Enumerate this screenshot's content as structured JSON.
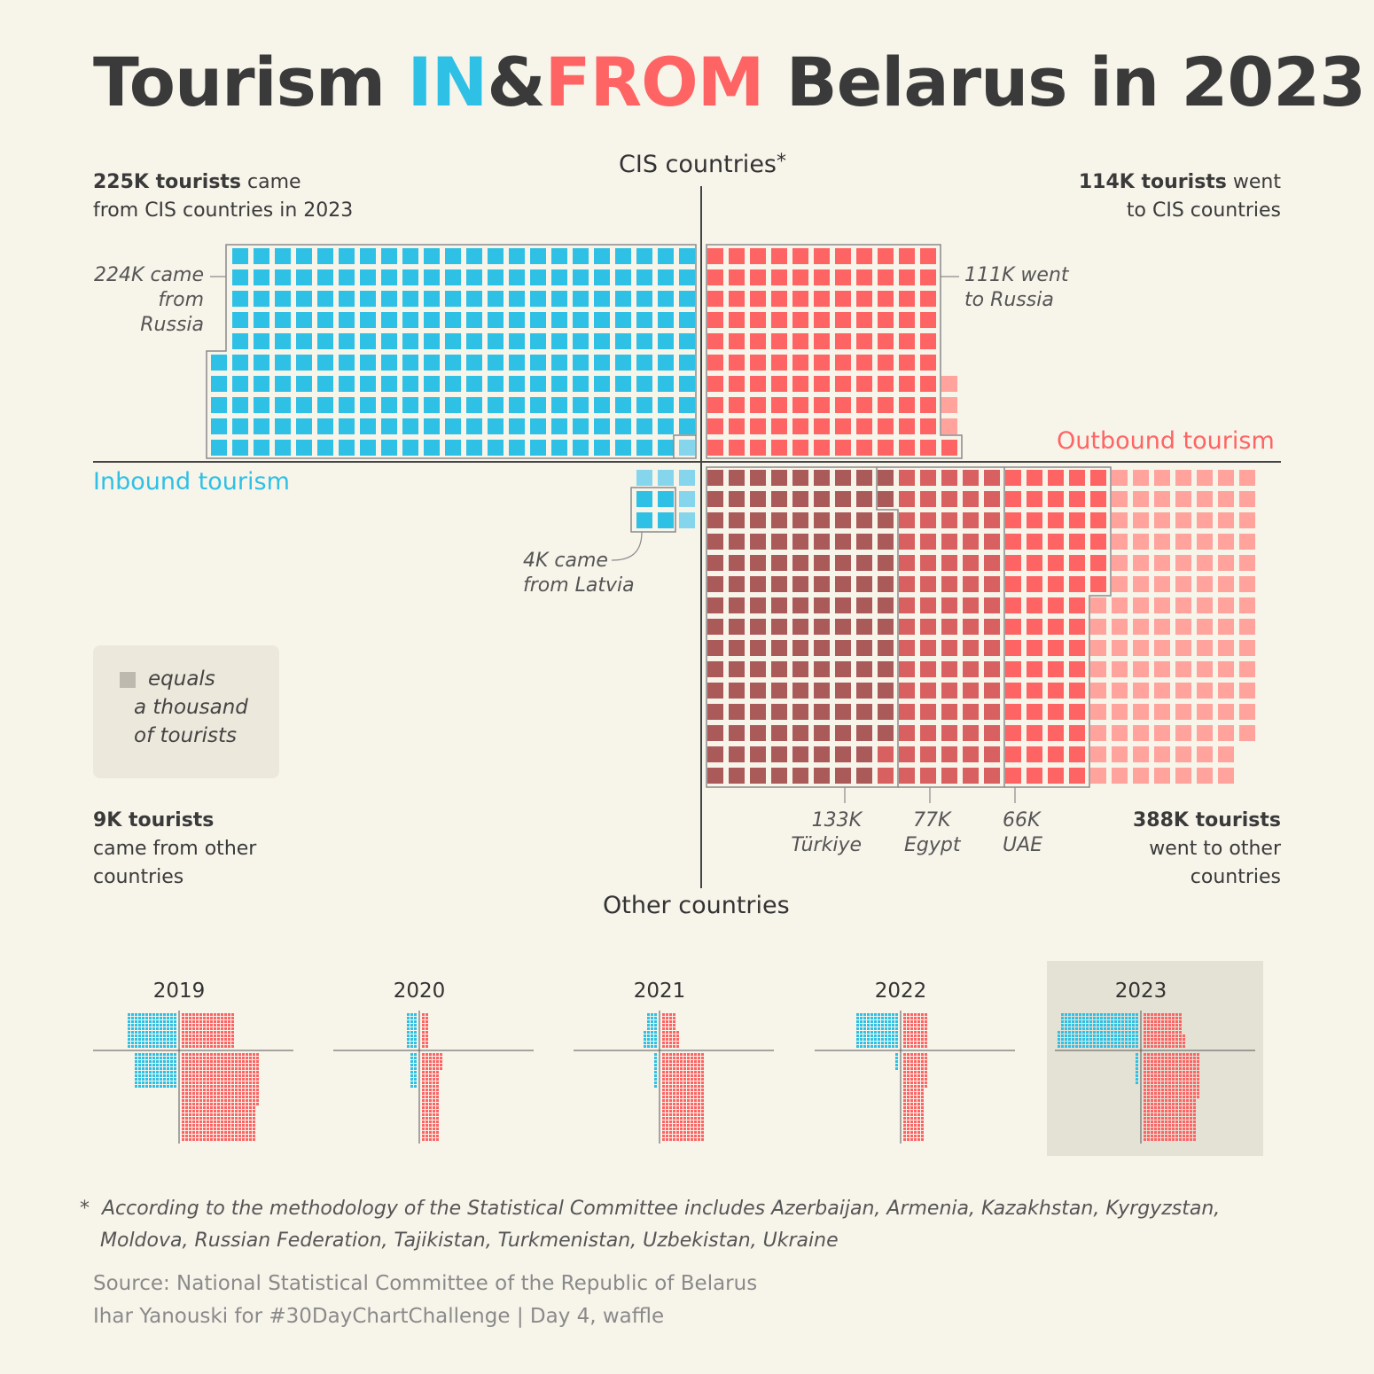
{
  "title": {
    "part1": "Tourism ",
    "in": "IN",
    "amp": "&",
    "from": "FROM",
    "part2": " Belarus in 2023"
  },
  "labels": {
    "cis_axis": "CIS countries",
    "cis_star": "*",
    "other_axis": "Other countries",
    "inbound": "Inbound tourism",
    "outbound": "Outbound tourism",
    "inbound_cis_bold": "225K tourists",
    "inbound_cis_rest1": " came",
    "inbound_cis_rest2": "from CIS countries in 2023",
    "outbound_cis_bold": "114K tourists",
    "outbound_cis_rest1": " went",
    "outbound_cis_rest2": "to CIS countries",
    "russia_in_1": "224K came",
    "russia_in_2": "from Russia",
    "russia_out_1": "111K went",
    "russia_out_2": "to Russia",
    "latvia_1": "4K came",
    "latvia_2": "from Latvia",
    "inbound_other_bold": "9K tourists",
    "inbound_other_rest1": "came from other",
    "inbound_other_rest2": "countries",
    "outbound_other_bold": "388K tourists",
    "outbound_other_rest1": "went to other",
    "outbound_other_rest2": "countries",
    "turkiye_val": "133K",
    "turkiye_name": "Türkiye",
    "egypt_val": "77K",
    "egypt_name": "Egypt",
    "uae_val": "66K",
    "uae_name": "UAE"
  },
  "legend": {
    "line1": "equals",
    "line2": "a thousand",
    "line3": "of tourists"
  },
  "footnote": {
    "star": "*",
    "line1": "According to the methodology of the Statistical Committee includes Azerbaijan, Armenia, Kazakhstan, Kyrgyzstan,",
    "line2": "Moldova, Russian Federation, Tajikistan, Turkmenistan, Uzbekistan, Ukraine"
  },
  "source": {
    "line1": "Source: National Statistical Committee of the Republic of Belarus",
    "line2": "Ihar Yanouski for #30DayChartChallenge | Day 4, waffle"
  },
  "colors": {
    "inbound": "#2fc0e5",
    "inbound_light": "#85d6ec",
    "outbound": "#ff6464",
    "outbound_light": "#ffa39c",
    "turkiye": "#ab5a5a",
    "egypt": "#d96060",
    "background": "#f7f4ea",
    "legend_square": "#bdb9af",
    "highlight_panel": "#e4e1d5"
  },
  "chart_data": {
    "type": "waffle",
    "unit": "1 square = 1000 tourists",
    "year": "2023",
    "inbound": {
      "cis_total": 225,
      "russia": 224,
      "other_total": 9,
      "latvia": 4
    },
    "outbound": {
      "cis_total": 114,
      "russia": 111,
      "other_total": 388,
      "turkiye": 133,
      "egypt": 77,
      "uae": 66
    },
    "small_multiples": [
      {
        "year": "2019",
        "inbound_cis": 140,
        "outbound_cis": 150,
        "inbound_other": 120,
        "outbound_other": 540
      },
      {
        "year": "2020",
        "inbound_cis": 30,
        "outbound_cis": 20,
        "inbound_other": 20,
        "outbound_other": 130
      },
      {
        "year": "2021",
        "inbound_cis": 35,
        "outbound_cis": 45,
        "inbound_other": 10,
        "outbound_other": 300
      },
      {
        "year": "2022",
        "inbound_cis": 120,
        "outbound_cis": 70,
        "inbound_other": 5,
        "outbound_other": 160
      },
      {
        "year": "2023",
        "inbound_cis": 225,
        "outbound_cis": 114,
        "inbound_other": 9,
        "outbound_other": 388
      }
    ]
  }
}
